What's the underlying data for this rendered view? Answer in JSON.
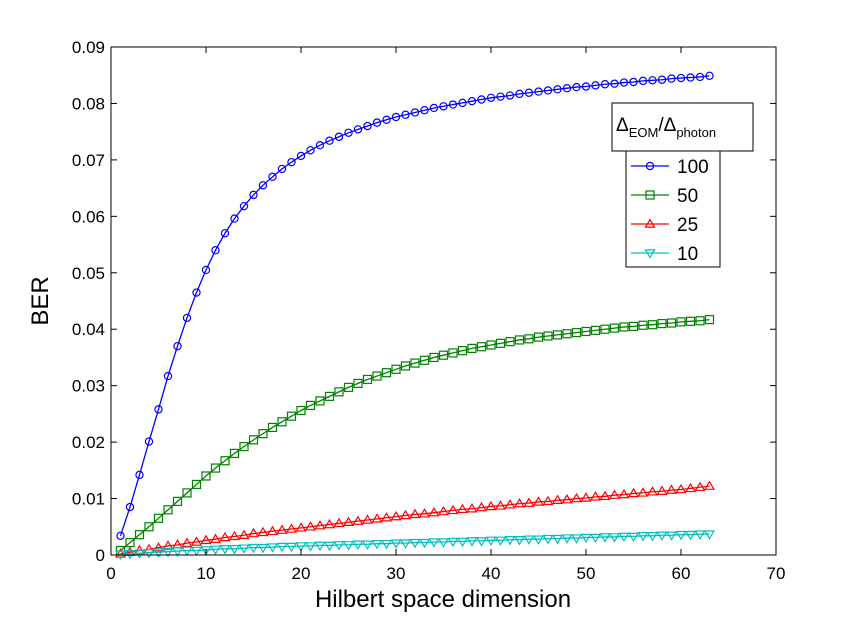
{
  "chart_data": {
    "type": "line",
    "xlabel": "Hilbert space dimension",
    "ylabel": "BER",
    "xlim": [
      0,
      70
    ],
    "ylim": [
      0,
      0.09
    ],
    "x_ticks": [
      0,
      10,
      20,
      30,
      40,
      50,
      60,
      70
    ],
    "y_ticks": [
      0,
      0.01,
      0.02,
      0.03,
      0.04,
      0.05,
      0.06,
      0.07,
      0.08,
      0.09
    ],
    "x_tick_labels": [
      "0",
      "10",
      "20",
      "30",
      "40",
      "50",
      "60",
      "70"
    ],
    "y_tick_labels": [
      "0",
      "0.01",
      "0.02",
      "0.03",
      "0.04",
      "0.05",
      "0.06",
      "0.07",
      "0.08",
      "0.09"
    ],
    "grid": false,
    "legend": {
      "placement": "top-right",
      "title_main": "Δ",
      "title_sub1": "EOM",
      "title_mid": "/Δ",
      "title_sub2": "photon"
    },
    "x": [
      1,
      2,
      3,
      4,
      5,
      6,
      7,
      8,
      9,
      10,
      11,
      12,
      13,
      14,
      15,
      16,
      17,
      18,
      19,
      20,
      21,
      22,
      23,
      24,
      25,
      26,
      27,
      28,
      29,
      30,
      31,
      32,
      33,
      34,
      35,
      36,
      37,
      38,
      39,
      40,
      41,
      42,
      43,
      44,
      45,
      46,
      47,
      48,
      49,
      50,
      51,
      52,
      53,
      54,
      55,
      56,
      57,
      58,
      59,
      60,
      61,
      62,
      63
    ],
    "series": [
      {
        "name": "100",
        "color": "#0000ff",
        "marker": "circle",
        "values": [
          0.0034,
          0.0085,
          0.0142,
          0.0201,
          0.0258,
          0.0317,
          0.037,
          0.042,
          0.0465,
          0.0505,
          0.054,
          0.057,
          0.0596,
          0.0618,
          0.0638,
          0.0655,
          0.067,
          0.0684,
          0.0696,
          0.0707,
          0.0717,
          0.0726,
          0.0734,
          0.0741,
          0.0748,
          0.0754,
          0.076,
          0.0766,
          0.0771,
          0.0776,
          0.078,
          0.0784,
          0.0788,
          0.0792,
          0.0795,
          0.0798,
          0.0801,
          0.0804,
          0.0807,
          0.081,
          0.0812,
          0.0814,
          0.0817,
          0.0819,
          0.0821,
          0.0823,
          0.0825,
          0.0827,
          0.0829,
          0.083,
          0.0832,
          0.0834,
          0.0835,
          0.0837,
          0.0838,
          0.084,
          0.0841,
          0.0842,
          0.0844,
          0.0845,
          0.0846,
          0.0847,
          0.0849
        ]
      },
      {
        "name": "50",
        "color": "#008000",
        "marker": "square",
        "values": [
          0.0008,
          0.0022,
          0.0036,
          0.005,
          0.0065,
          0.008,
          0.0095,
          0.011,
          0.0125,
          0.014,
          0.0154,
          0.0167,
          0.018,
          0.0192,
          0.0204,
          0.0215,
          0.0226,
          0.0236,
          0.0246,
          0.0256,
          0.0265,
          0.0273,
          0.0281,
          0.0289,
          0.0297,
          0.0304,
          0.0311,
          0.0317,
          0.0323,
          0.0329,
          0.0335,
          0.034,
          0.0345,
          0.035,
          0.0354,
          0.0358,
          0.0362,
          0.0366,
          0.0369,
          0.0372,
          0.0375,
          0.0378,
          0.0381,
          0.0383,
          0.0386,
          0.0388,
          0.039,
          0.0392,
          0.0394,
          0.0396,
          0.0398,
          0.04,
          0.0402,
          0.0404,
          0.0405,
          0.0407,
          0.0408,
          0.041,
          0.0411,
          0.0413,
          0.0414,
          0.0415,
          0.0417
        ]
      },
      {
        "name": "25",
        "color": "#ff0000",
        "marker": "triangle-up",
        "values": [
          0.0002,
          0.0005,
          0.0008,
          0.001,
          0.0013,
          0.0016,
          0.0018,
          0.0021,
          0.0023,
          0.0026,
          0.0028,
          0.0031,
          0.0033,
          0.0035,
          0.0038,
          0.004,
          0.0042,
          0.0044,
          0.0046,
          0.0048,
          0.005,
          0.0052,
          0.0054,
          0.0056,
          0.0058,
          0.006,
          0.0062,
          0.0064,
          0.0066,
          0.0068,
          0.007,
          0.0072,
          0.0073,
          0.0075,
          0.0077,
          0.0079,
          0.0081,
          0.0082,
          0.0084,
          0.0086,
          0.0087,
          0.0089,
          0.0091,
          0.0092,
          0.0094,
          0.0095,
          0.0097,
          0.0098,
          0.01,
          0.0101,
          0.0103,
          0.0104,
          0.0106,
          0.0107,
          0.0109,
          0.011,
          0.0112,
          0.0113,
          0.0115,
          0.0116,
          0.0118,
          0.012,
          0.0122
        ]
      },
      {
        "name": "10",
        "color": "#00bfbf",
        "marker": "triangle-down",
        "values": [
          0.0001,
          0.0002,
          0.0003,
          0.0004,
          0.0005,
          0.0006,
          0.0007,
          0.0008,
          0.0008,
          0.0009,
          0.001,
          0.0011,
          0.0011,
          0.0012,
          0.0013,
          0.0013,
          0.0014,
          0.0015,
          0.0015,
          0.0016,
          0.0016,
          0.0017,
          0.0017,
          0.0018,
          0.0018,
          0.0019,
          0.0019,
          0.002,
          0.002,
          0.0021,
          0.0021,
          0.0022,
          0.0022,
          0.0023,
          0.0023,
          0.0024,
          0.0024,
          0.0025,
          0.0025,
          0.0026,
          0.0026,
          0.0027,
          0.0027,
          0.0028,
          0.0028,
          0.0029,
          0.0029,
          0.003,
          0.003,
          0.0031,
          0.0031,
          0.0032,
          0.0032,
          0.0033,
          0.0033,
          0.0034,
          0.0034,
          0.0035,
          0.0035,
          0.0036,
          0.0036,
          0.0037,
          0.0037
        ]
      }
    ]
  }
}
